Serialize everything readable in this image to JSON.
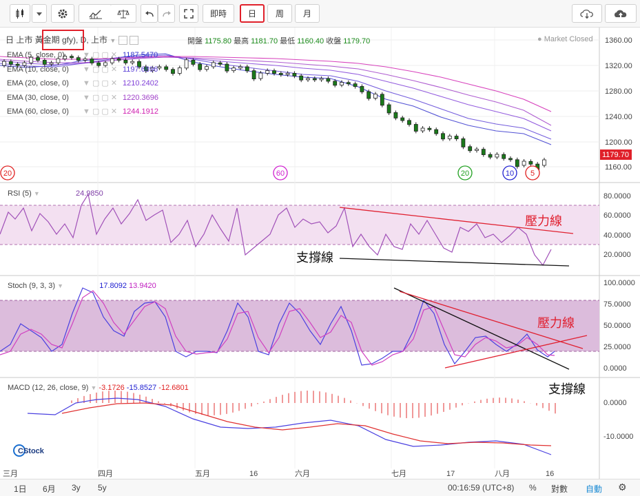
{
  "toolbar": {
    "intraday": "即時",
    "day": "日",
    "week": "周",
    "month": "月"
  },
  "header": {
    "symbol": "日 上市 黃金期 gfy), D, 上市",
    "open_label": "開盤",
    "open": "1175.80",
    "high_label": "最高",
    "high": "1181.70",
    "low_label": "最低",
    "low": "1160.40",
    "close_label": "收盤",
    "close": "1179.70",
    "market_status": "Market Closed"
  },
  "ema": [
    {
      "label": "EMA (5, close, 0)",
      "value": "1187.5470",
      "color": "#3333cc"
    },
    {
      "label": "EMA (10, close, 0)",
      "value": "1197.6896",
      "color": "#5a3fd6"
    },
    {
      "label": "EMA (20, close, 0)",
      "value": "1210.2402",
      "color": "#8040d8"
    },
    {
      "label": "EMA (30, close, 0)",
      "value": "1220.3696",
      "color": "#a040c8"
    },
    {
      "label": "EMA (60, close, 0)",
      "value": "1244.1912",
      "color": "#d020b0"
    }
  ],
  "price_axis": [
    "1360.00",
    "1320.00",
    "1280.00",
    "1240.00",
    "1200.00",
    "1160.00"
  ],
  "price_tag": "1179.70",
  "period_circles": [
    {
      "text": "20",
      "color": "#e02020"
    },
    {
      "text": "60",
      "color": "#d020d0"
    },
    {
      "text": "20",
      "color": "#20a020"
    },
    {
      "text": "10",
      "color": "#2020d0"
    },
    {
      "text": "5",
      "color": "#e02020"
    }
  ],
  "rsi": {
    "label": "RSI (5)",
    "value": "24.9850",
    "axis": [
      "80.0000",
      "60.0000",
      "40.0000",
      "20.0000"
    ],
    "resistance": "壓力線",
    "support": "支撐線"
  },
  "stoch": {
    "label": "Stoch (9, 3, 3)",
    "k": "17.8092",
    "d": "13.9420",
    "axis": [
      "100.0000",
      "75.0000",
      "50.0000",
      "25.0000",
      "0.0000"
    ],
    "resistance": "壓力線",
    "support": "支撐線"
  },
  "macd": {
    "label": "MACD (12, 26, close, 9)",
    "v1": "-3.1726",
    "v2": "-15.8527",
    "v3": "-12.6801",
    "axis": [
      "0.0000",
      "-10.0000"
    ],
    "watermark": "CStock"
  },
  "time_axis": [
    "三月",
    "四月",
    "五月",
    "16",
    "六月",
    "七月",
    "17",
    "八月",
    "16"
  ],
  "bottom": {
    "ranges": [
      "1日",
      "6月",
      "3y",
      "5y"
    ],
    "clock": "00:16:59 (UTC+8)",
    "percent": "%",
    "log": "對數",
    "auto": "自動"
  },
  "colors": {
    "up": "#ffffff",
    "down": "#1a8a1a",
    "red": "#e0202a",
    "band": "#f0d8ee",
    "stochband": "#dcb4dc"
  }
}
